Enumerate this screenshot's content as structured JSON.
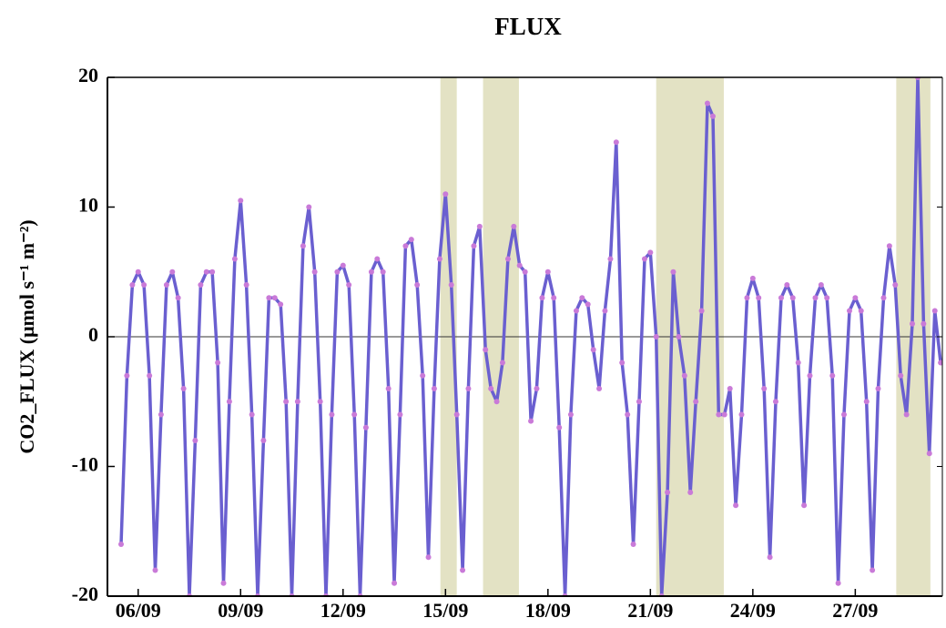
{
  "chart_data": {
    "type": "line",
    "title": "FLUX",
    "y_label": "CO2_FLUX (μmol s⁻¹ m⁻²)",
    "x": [
      5.5,
      5.67,
      5.83,
      6,
      6.17,
      6.33,
      6.5,
      6.67,
      6.83,
      7,
      7.17,
      7.33,
      7.5,
      7.67,
      7.83,
      8,
      8.17,
      8.33,
      8.5,
      8.67,
      8.83,
      9,
      9.17,
      9.33,
      9.5,
      9.67,
      9.83,
      10,
      10.17,
      10.33,
      10.5,
      10.67,
      10.83,
      11,
      11.17,
      11.33,
      11.5,
      11.67,
      11.83,
      12,
      12.17,
      12.33,
      12.5,
      12.67,
      12.83,
      13,
      13.17,
      13.33,
      13.5,
      13.67,
      13.83,
      14,
      14.17,
      14.33,
      14.5,
      14.67,
      14.83,
      15,
      15.17,
      15.33,
      15.5,
      15.67,
      15.83,
      16,
      16.17,
      16.33,
      16.5,
      16.67,
      16.83,
      17,
      17.17,
      17.33,
      17.5,
      17.67,
      17.83,
      18,
      18.17,
      18.33,
      18.5,
      18.67,
      18.83,
      19,
      19.17,
      19.33,
      19.5,
      19.67,
      19.83,
      20,
      20.17,
      20.33,
      20.5,
      20.67,
      20.83,
      21,
      21.17,
      21.33,
      21.5,
      21.67,
      21.83,
      22,
      22.17,
      22.33,
      22.5,
      22.67,
      22.83,
      23,
      23.17,
      23.33,
      23.5,
      23.67,
      23.83,
      24,
      24.17,
      24.33,
      24.5,
      24.67,
      24.83,
      25,
      25.17,
      25.33,
      25.5,
      25.67,
      25.83,
      26,
      26.17,
      26.33,
      26.5,
      26.67,
      26.83,
      27,
      27.17,
      27.33,
      27.5,
      27.67,
      27.83,
      28,
      28.17,
      28.33,
      28.5,
      28.67,
      28.83,
      29,
      29.17,
      29.33,
      29.5
    ],
    "values": [
      -16,
      -3,
      4,
      5,
      4,
      -3,
      -18,
      -6,
      4,
      5,
      3,
      -4,
      -20,
      -8,
      4,
      5,
      5,
      -2,
      -19,
      -5,
      6,
      10.5,
      4,
      -6,
      -20,
      -8,
      3,
      3,
      2.5,
      -5,
      -20,
      -5,
      7,
      10,
      5,
      -5,
      -20,
      -6,
      5,
      5.5,
      4,
      -6,
      -20,
      -7,
      5,
      6,
      5,
      -4,
      -19,
      -6,
      7,
      7.5,
      4,
      -3,
      -17,
      -4,
      6,
      11,
      4,
      -6,
      -18,
      -4,
      7,
      8.5,
      -1,
      -4,
      -5,
      -2,
      6,
      8.5,
      5.5,
      5,
      -6.5,
      -4,
      3,
      5,
      3,
      -7,
      -20,
      -6,
      2,
      3,
      2.5,
      -1,
      -4,
      2,
      6,
      15,
      -2,
      -6,
      -16,
      -5,
      6,
      6.5,
      0,
      -20,
      -12,
      5,
      0,
      -3,
      -12,
      -5,
      2,
      18,
      17,
      -6,
      -6,
      -4,
      -13,
      -6,
      3,
      4.5,
      3,
      -4,
      -17,
      -5,
      3,
      4,
      3,
      -2,
      -13,
      -3,
      3,
      4,
      3,
      -3,
      -19,
      -6,
      2,
      3,
      2,
      -5,
      -18,
      -4,
      3,
      7,
      4,
      -3,
      -6,
      1,
      20,
      1,
      -9,
      2,
      -2
    ],
    "line_color": "#6a5fd0",
    "marker_color": "#c97ad8",
    "shaded_regions": [
      [
        14.85,
        15.33
      ],
      [
        16.1,
        17.15
      ],
      [
        21.17,
        23.15
      ],
      [
        28.2,
        29.2
      ]
    ],
    "shade_color": "#e3e2c4",
    "xlim": [
      5.1,
      29.55
    ],
    "xticks": [
      {
        "value": 6,
        "label": "06/09"
      },
      {
        "value": 9,
        "label": "09/09"
      },
      {
        "value": 12,
        "label": "12/09"
      },
      {
        "value": 15,
        "label": "15/09"
      },
      {
        "value": 18,
        "label": "18/09"
      },
      {
        "value": 21,
        "label": "21/09"
      },
      {
        "value": 24,
        "label": "24/09"
      },
      {
        "value": 27,
        "label": "27/09"
      }
    ],
    "ylim": [
      -20,
      20
    ],
    "yticks": [
      -20,
      -10,
      0,
      10,
      20
    ],
    "zero_line": true
  }
}
